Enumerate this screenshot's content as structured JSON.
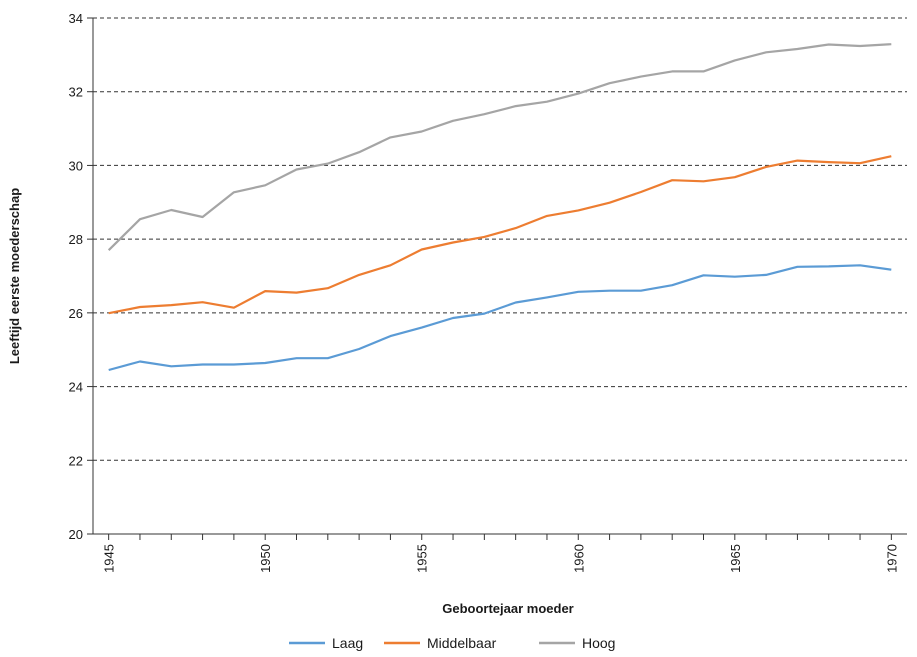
{
  "chart_data": {
    "type": "line",
    "title": "",
    "xlabel": "Geboortejaar moeder",
    "ylabel": "Leeftijd eerste moederschap",
    "xlim": [
      1944.5,
      1970.5
    ],
    "ylim": [
      20,
      34
    ],
    "y_ticks": [
      20,
      22,
      24,
      26,
      28,
      30,
      32,
      34
    ],
    "x_tick_labels": [
      "1945",
      "1950",
      "1955",
      "1960",
      "1965",
      "1970"
    ],
    "x_tick_values": [
      1945,
      1950,
      1955,
      1960,
      1965,
      1970
    ],
    "grid": "horizontal dashed",
    "legend_position": "bottom",
    "x": [
      1945,
      1946,
      1947,
      1948,
      1949,
      1950,
      1951,
      1952,
      1953,
      1954,
      1955,
      1956,
      1957,
      1958,
      1959,
      1960,
      1961,
      1962,
      1963,
      1964,
      1965,
      1966,
      1967,
      1968,
      1969,
      1970
    ],
    "series": [
      {
        "name": "Laag",
        "color": "#5b9bd5",
        "values": [
          24.45,
          24.68,
          24.55,
          24.6,
          24.6,
          24.64,
          24.77,
          24.77,
          25.02,
          25.37,
          25.6,
          25.86,
          25.98,
          26.28,
          26.42,
          26.57,
          26.6,
          26.6,
          26.75,
          27.02,
          26.98,
          27.03,
          27.25,
          27.26,
          27.29,
          27.17
        ]
      },
      {
        "name": "Middelbaar",
        "color": "#ed7d31",
        "values": [
          25.99,
          26.16,
          26.21,
          26.29,
          26.14,
          26.59,
          26.55,
          26.67,
          27.03,
          27.29,
          27.72,
          27.91,
          28.06,
          28.3,
          28.63,
          28.78,
          28.99,
          29.28,
          29.6,
          29.57,
          29.68,
          29.96,
          30.13,
          30.09,
          30.06,
          30.25
        ]
      },
      {
        "name": "Hoog",
        "color": "#a5a5a5",
        "values": [
          27.7,
          28.54,
          28.79,
          28.6,
          29.27,
          29.46,
          29.89,
          30.05,
          30.36,
          30.76,
          30.92,
          31.21,
          31.39,
          31.61,
          31.73,
          31.95,
          32.23,
          32.41,
          32.55,
          32.55,
          32.85,
          33.07,
          33.16,
          33.28,
          33.24,
          33.29
        ]
      }
    ]
  }
}
